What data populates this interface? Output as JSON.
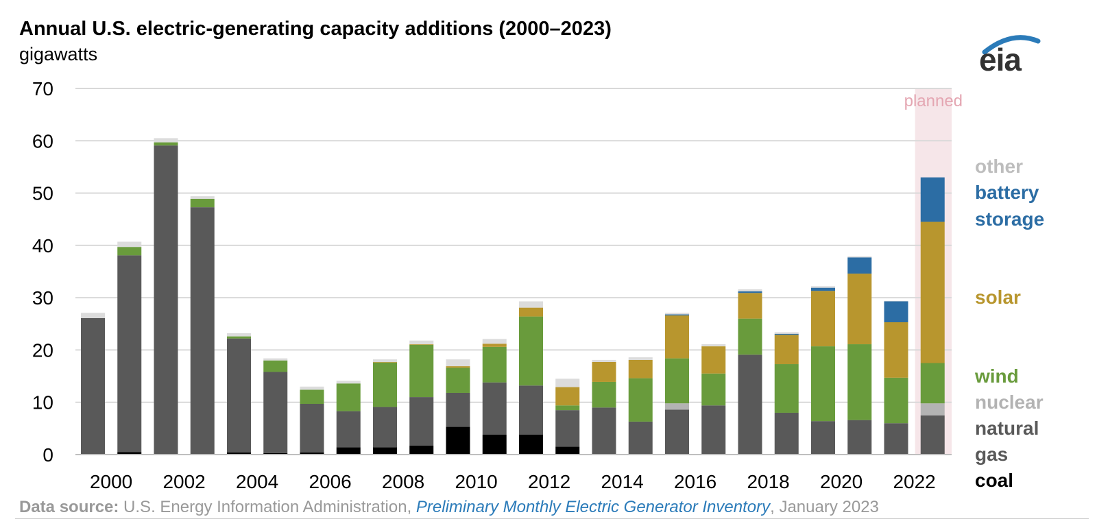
{
  "header": {
    "title": "Annual U.S. electric-generating capacity additions (2000–2023)",
    "subtitle": "gigawatts",
    "logo_text": "eia"
  },
  "footer": {
    "source_label": "Data source:",
    "source_org": " U.S. Energy Information Administration, ",
    "source_title": "Preliminary Monthly Electric Generator Inventory",
    "source_date": ", January 2023"
  },
  "colors": {
    "coal": "#000000",
    "natural_gas": "#595959",
    "nuclear": "#b3b3b3",
    "wind": "#699b3c",
    "solar": "#b8962e",
    "battery_storage": "#2c6da4",
    "other": "#dcdcdc",
    "planned_band": "#f6e6e9",
    "planned_text": "#e4a6b2",
    "gridline": "#d9d9d9"
  },
  "chart_data": {
    "type": "bar",
    "stacked": true,
    "title": "Annual U.S. electric-generating capacity additions (2000–2023)",
    "ylabel": "gigawatts",
    "ylim": [
      0,
      70
    ],
    "yticks": [
      0,
      10,
      20,
      30,
      40,
      50,
      60,
      70
    ],
    "x": [
      2000,
      2001,
      2002,
      2003,
      2004,
      2005,
      2006,
      2007,
      2008,
      2009,
      2010,
      2011,
      2012,
      2013,
      2014,
      2015,
      2016,
      2017,
      2018,
      2019,
      2020,
      2021,
      2022,
      2023
    ],
    "xtick_labels": [
      "2000",
      "2002",
      "2004",
      "2006",
      "2008",
      "2010",
      "2012",
      "2014",
      "2016",
      "2018",
      "2020",
      "2022"
    ],
    "xtick_values": [
      2000,
      2002,
      2004,
      2006,
      2008,
      2010,
      2012,
      2014,
      2016,
      2018,
      2020,
      2022
    ],
    "planned_label": "planned",
    "planned_years": [
      2023
    ],
    "grid": true,
    "legend_position": "right",
    "series": [
      {
        "key": "coal",
        "name": "coal",
        "values": [
          0.1,
          0.5,
          0.1,
          0.1,
          0.4,
          0.3,
          0.4,
          1.4,
          1.4,
          1.7,
          5.3,
          3.8,
          3.8,
          1.5,
          0.1,
          0.1,
          0.0,
          0.0,
          0.0,
          0.0,
          0.0,
          0.0,
          0.0,
          0.0
        ]
      },
      {
        "key": "natural_gas",
        "name": "natural gas",
        "values": [
          26.0,
          37.6,
          59.0,
          47.2,
          21.8,
          15.5,
          9.3,
          6.9,
          7.7,
          9.3,
          6.5,
          10.0,
          9.4,
          7.0,
          8.9,
          6.2,
          8.6,
          9.4,
          19.1,
          8.0,
          6.4,
          6.6,
          6.0,
          7.5
        ]
      },
      {
        "key": "nuclear",
        "name": "nuclear",
        "values": [
          0.0,
          0.0,
          0.0,
          0.0,
          0.0,
          0.0,
          0.0,
          0.0,
          0.0,
          0.0,
          0.0,
          0.0,
          0.0,
          0.0,
          0.0,
          0.0,
          1.2,
          0.0,
          0.0,
          0.0,
          0.0,
          0.0,
          0.0,
          2.3
        ]
      },
      {
        "key": "wind",
        "name": "wind",
        "values": [
          0.0,
          1.6,
          0.6,
          1.6,
          0.4,
          2.2,
          2.7,
          5.3,
          8.5,
          10.0,
          4.8,
          6.8,
          13.2,
          0.9,
          4.9,
          8.3,
          8.6,
          6.1,
          6.9,
          9.3,
          14.3,
          14.5,
          8.7,
          7.7
        ]
      },
      {
        "key": "solar",
        "name": "solar",
        "values": [
          0.0,
          0.0,
          0.0,
          0.0,
          0.0,
          0.0,
          0.0,
          0.0,
          0.1,
          0.1,
          0.3,
          0.6,
          1.7,
          3.5,
          3.8,
          3.5,
          8.2,
          5.2,
          4.9,
          5.6,
          10.6,
          13.5,
          10.6,
          27.0
        ]
      },
      {
        "key": "battery_storage",
        "name": "battery storage",
        "values": [
          0.0,
          0.0,
          0.0,
          0.0,
          0.0,
          0.0,
          0.0,
          0.0,
          0.0,
          0.0,
          0.0,
          0.0,
          0.0,
          0.0,
          0.0,
          0.0,
          0.2,
          0.0,
          0.3,
          0.2,
          0.6,
          3.1,
          4.0,
          8.5
        ]
      },
      {
        "key": "other",
        "name": "other",
        "values": [
          1.0,
          1.0,
          0.8,
          0.5,
          0.6,
          0.4,
          0.6,
          0.5,
          0.5,
          0.7,
          1.3,
          0.9,
          1.2,
          1.6,
          0.4,
          0.5,
          0.3,
          0.4,
          0.4,
          0.3,
          0.3,
          0.2,
          0.1,
          0.0
        ]
      }
    ],
    "legend": [
      {
        "key": "other",
        "label": "other"
      },
      {
        "key": "battery_storage",
        "label": "battery storage",
        "lines": [
          "battery",
          "storage"
        ]
      },
      {
        "key": "solar",
        "label": "solar"
      },
      {
        "key": "wind",
        "label": "wind"
      },
      {
        "key": "nuclear",
        "label": "nuclear"
      },
      {
        "key": "natural_gas",
        "label": "natural gas",
        "lines": [
          "natural",
          "gas"
        ]
      },
      {
        "key": "coal",
        "label": "coal"
      }
    ]
  }
}
